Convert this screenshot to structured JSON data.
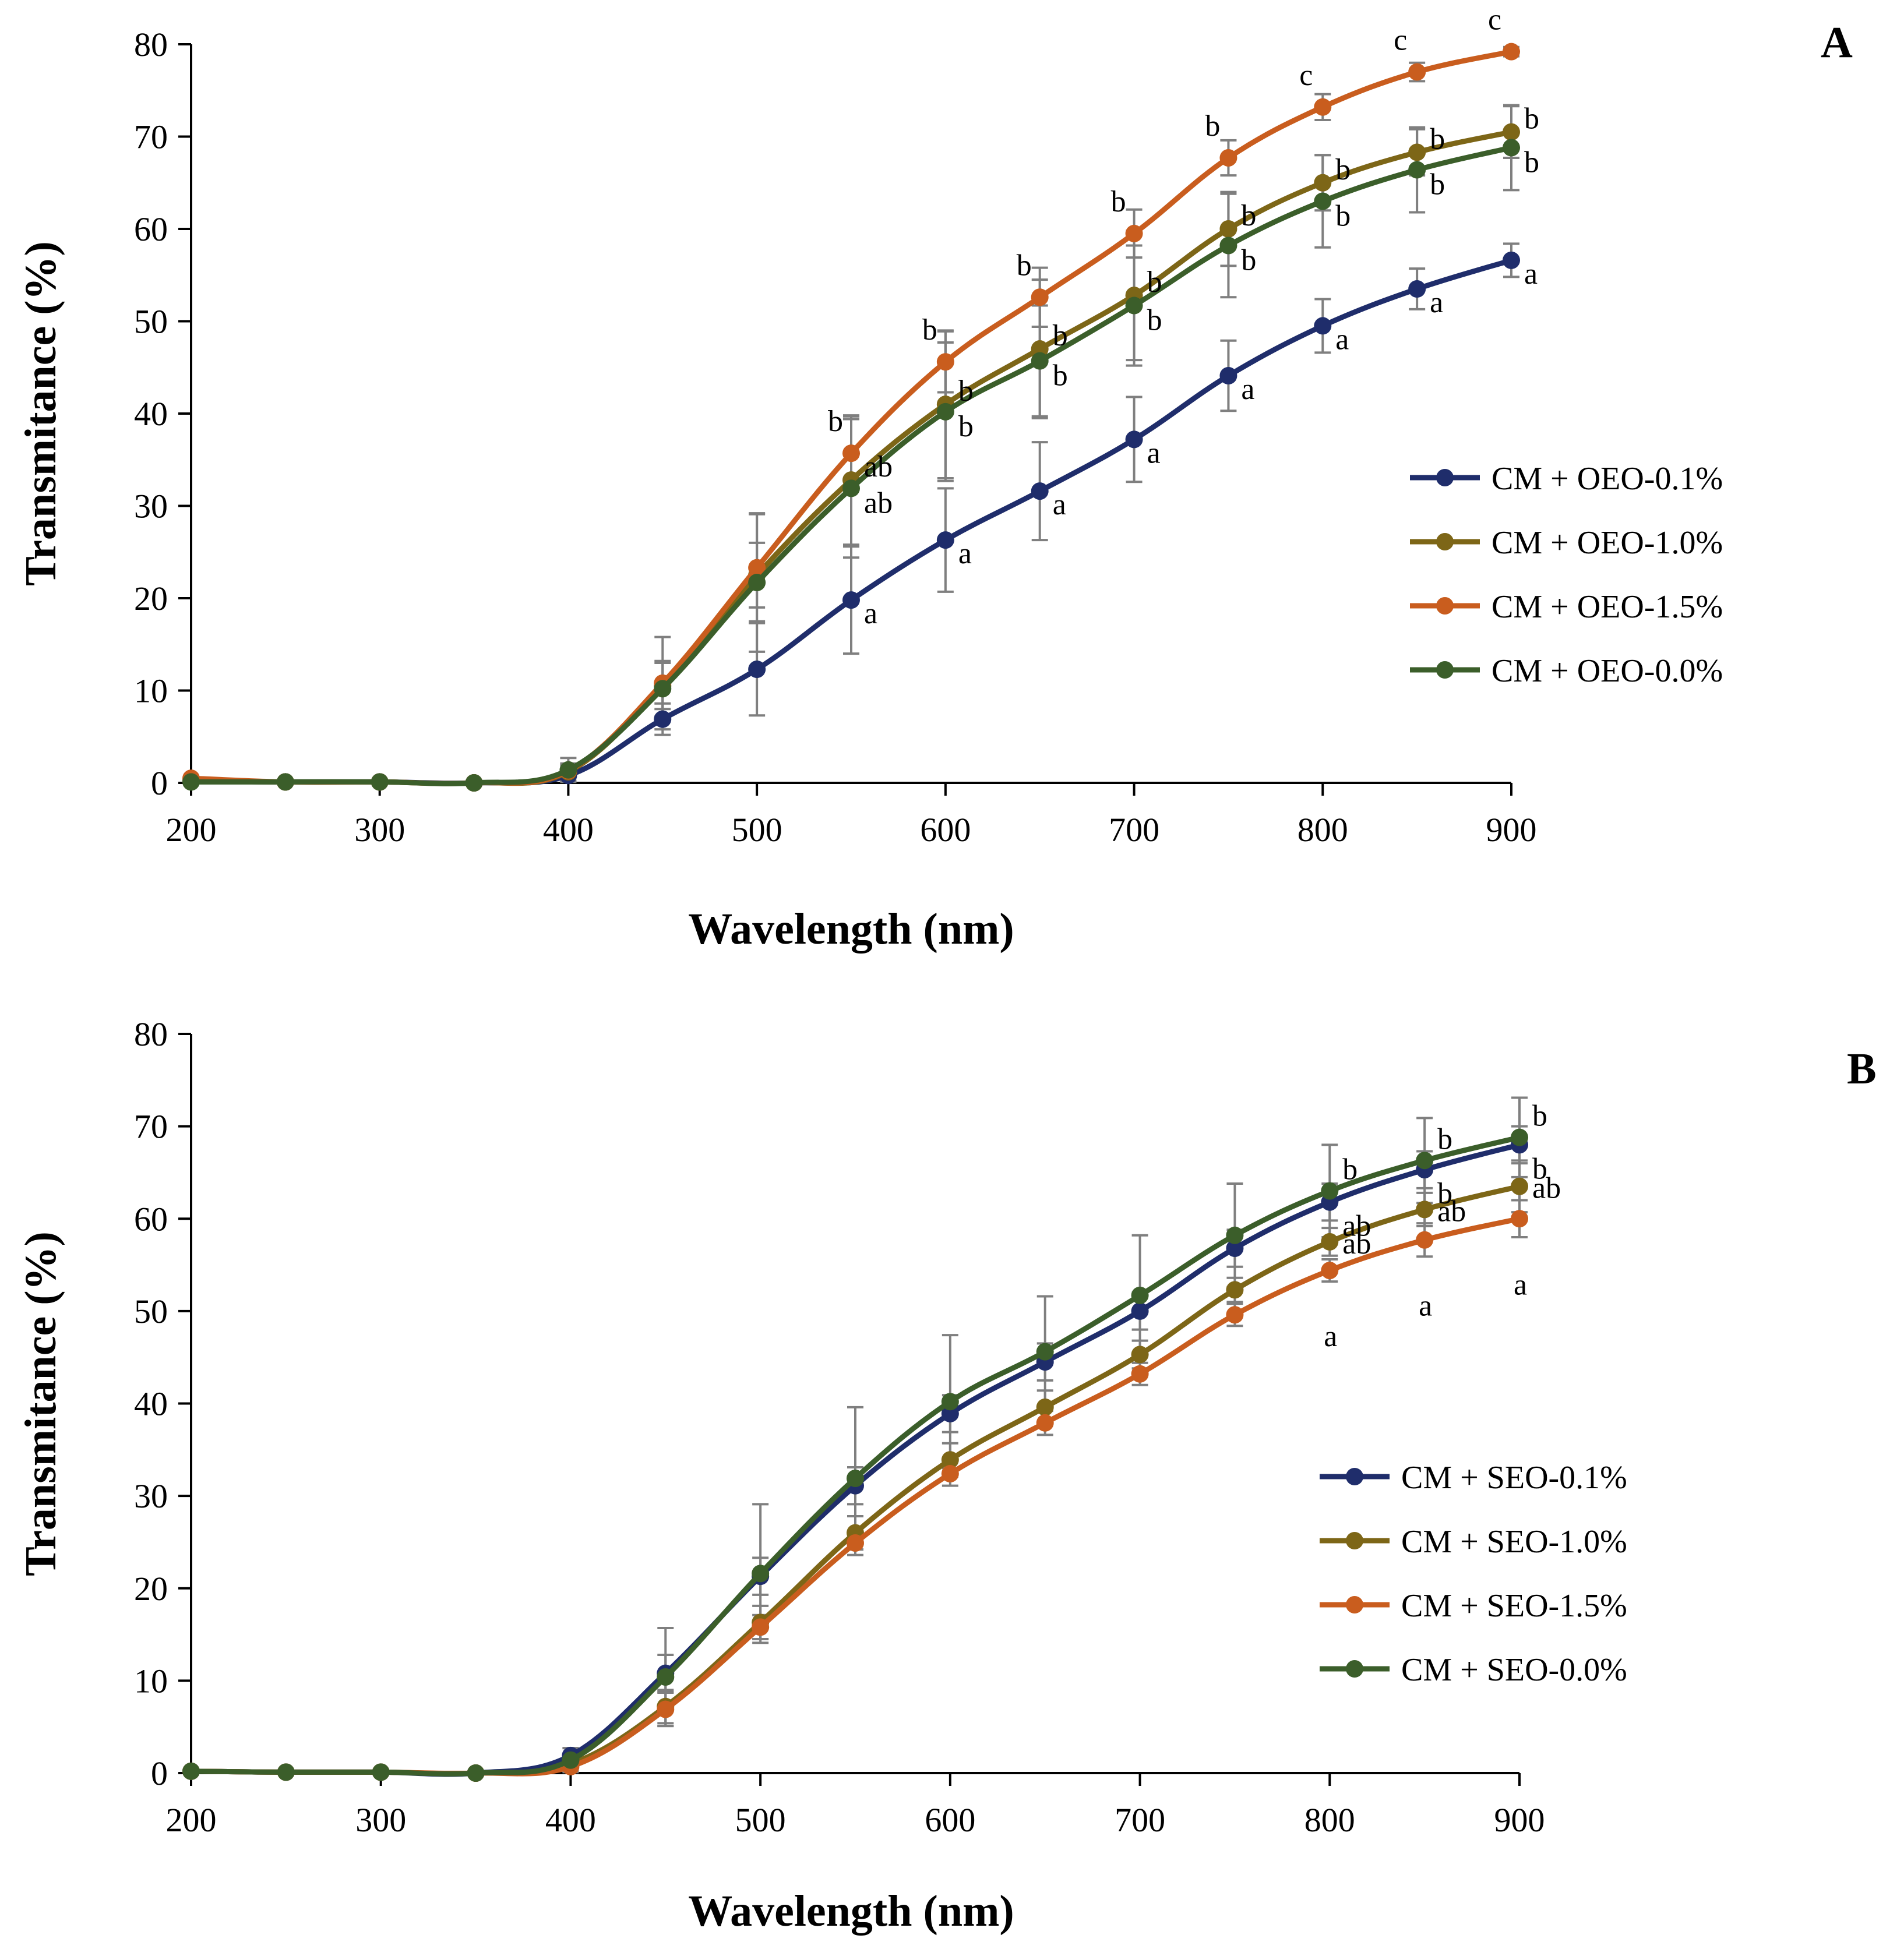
{
  "chart_data": [
    {
      "type": "line",
      "panel_label": "A",
      "xlabel": "Wavelength (nm)",
      "ylabel": "Transmitance (%)",
      "xlim": [
        200,
        900
      ],
      "ylim": [
        0,
        80
      ],
      "x_ticks": [
        200,
        300,
        400,
        500,
        600,
        700,
        800,
        900
      ],
      "y_ticks": [
        0,
        10,
        20,
        30,
        40,
        50,
        60,
        70,
        80
      ],
      "legend_position": "right",
      "x": [
        200,
        250,
        300,
        350,
        400,
        450,
        500,
        550,
        600,
        650,
        700,
        750,
        800,
        850,
        900
      ],
      "series": [
        {
          "name": "CM + OEO-0.1%",
          "color": "#1f2d6b",
          "values": [
            0.2,
            0.1,
            0.1,
            0.0,
            0.8,
            6.9,
            12.3,
            19.8,
            26.3,
            31.6,
            37.2,
            44.1,
            49.5,
            53.5,
            56.6
          ],
          "errors": [
            0.3,
            0.2,
            0.2,
            0.1,
            0.6,
            1.7,
            5.0,
            5.8,
            5.6,
            5.3,
            4.6,
            3.8,
            2.9,
            2.2,
            1.8
          ],
          "sig": [
            null,
            null,
            null,
            null,
            null,
            null,
            null,
            "a",
            "a",
            "a",
            "a",
            "a",
            "a",
            "a",
            "a"
          ]
        },
        {
          "name": "CM + OEO-1.0%",
          "color": "#7d6617",
          "values": [
            0.2,
            0.1,
            0.1,
            0.0,
            1.2,
            10.5,
            22.5,
            32.8,
            41.0,
            47.0,
            52.8,
            60.0,
            65.0,
            68.3,
            70.5
          ],
          "errors": [
            0.3,
            0.2,
            0.2,
            0.1,
            0.7,
            2.5,
            3.5,
            7.0,
            8.0,
            7.5,
            7.0,
            4.0,
            3.0,
            2.5,
            2.8
          ],
          "sig": [
            null,
            null,
            null,
            null,
            null,
            null,
            null,
            "ab",
            "b",
            "b",
            "b",
            "b",
            "b",
            "b",
            "b"
          ]
        },
        {
          "name": "CM + OEO-1.5%",
          "color": "#c95d1e",
          "values": [
            0.5,
            0.1,
            0.1,
            0.0,
            1.3,
            10.8,
            23.3,
            35.7,
            45.6,
            52.6,
            59.5,
            67.7,
            73.2,
            77.0,
            79.2
          ],
          "errors": [
            0.3,
            0.2,
            0.2,
            0.1,
            0.8,
            5.0,
            5.8,
            4.0,
            3.3,
            3.2,
            2.6,
            1.9,
            1.4,
            1.0,
            0.5
          ],
          "sig": [
            null,
            null,
            null,
            null,
            null,
            null,
            null,
            "b",
            "b",
            "b",
            "b",
            "b",
            "c",
            "c",
            "c"
          ]
        },
        {
          "name": "CM + OEO-0.0%",
          "color": "#3b5e2a",
          "values": [
            0.1,
            0.1,
            0.1,
            0.0,
            1.4,
            10.2,
            21.7,
            31.9,
            40.2,
            45.7,
            51.7,
            58.2,
            63.0,
            66.4,
            68.8
          ],
          "errors": [
            0.3,
            0.2,
            0.2,
            0.1,
            1.3,
            3.0,
            7.5,
            7.5,
            7.5,
            6.0,
            6.5,
            5.6,
            5.0,
            4.6,
            4.6
          ],
          "sig": [
            null,
            null,
            null,
            null,
            null,
            null,
            null,
            "ab",
            "b",
            "b",
            "b",
            "b",
            "b",
            "b",
            "b"
          ]
        }
      ]
    },
    {
      "type": "line",
      "panel_label": "B",
      "xlabel": "Wavelength (nm)",
      "ylabel": "Transmitance (%)",
      "xlim": [
        200,
        900
      ],
      "ylim": [
        0,
        80
      ],
      "x_ticks": [
        200,
        300,
        400,
        500,
        600,
        700,
        800,
        900
      ],
      "y_ticks": [
        0,
        10,
        20,
        30,
        40,
        50,
        60,
        70,
        80
      ],
      "legend_position": "right",
      "x": [
        200,
        250,
        300,
        350,
        400,
        450,
        500,
        550,
        600,
        650,
        700,
        750,
        800,
        850,
        900
      ],
      "series": [
        {
          "name": "CM + SEO-0.1%",
          "color": "#1f2d6b",
          "values": [
            0.2,
            0.1,
            0.1,
            0.0,
            1.9,
            10.8,
            21.3,
            31.1,
            38.9,
            44.5,
            50.0,
            56.8,
            61.8,
            65.3,
            68.0
          ],
          "errors": [
            0.3,
            0.2,
            0.2,
            0.1,
            0.8,
            2.0,
            2.0,
            2.0,
            2.0,
            2.0,
            2.0,
            2.0,
            2.0,
            2.0,
            2.0
          ],
          "sig": [
            null,
            null,
            null,
            null,
            null,
            null,
            null,
            null,
            null,
            null,
            null,
            null,
            "ab",
            "b",
            "b"
          ]
        },
        {
          "name": "CM + SEO-1.0%",
          "color": "#7d6617",
          "values": [
            0.2,
            0.1,
            0.1,
            0.0,
            1.0,
            7.2,
            16.3,
            26.0,
            33.9,
            39.6,
            45.3,
            52.3,
            57.5,
            61.0,
            63.5
          ],
          "errors": [
            0.3,
            0.2,
            0.2,
            0.1,
            0.6,
            1.8,
            1.8,
            1.8,
            1.8,
            1.8,
            1.5,
            1.3,
            1.5,
            1.8,
            2.8
          ],
          "sig": [
            null,
            null,
            null,
            null,
            null,
            null,
            null,
            null,
            null,
            null,
            null,
            null,
            "ab",
            "ab",
            "ab"
          ]
        },
        {
          "name": "CM + SEO-1.5%",
          "color": "#c95d1e",
          "values": [
            0.2,
            0.1,
            0.1,
            0.0,
            0.7,
            6.9,
            15.8,
            24.9,
            32.4,
            37.9,
            43.2,
            49.6,
            54.4,
            57.7,
            60.0
          ],
          "errors": [
            0.3,
            0.2,
            0.2,
            0.1,
            0.5,
            1.8,
            1.3,
            1.3,
            1.3,
            1.3,
            1.2,
            1.2,
            1.2,
            1.8,
            2.0
          ],
          "sig": [
            null,
            null,
            null,
            null,
            null,
            null,
            null,
            null,
            null,
            null,
            null,
            null,
            "a",
            "a",
            "a"
          ]
        },
        {
          "name": "CM + SEO-0.0%",
          "color": "#3b5e2a",
          "values": [
            0.2,
            0.1,
            0.1,
            0.0,
            1.4,
            10.4,
            21.6,
            31.9,
            40.2,
            45.6,
            51.7,
            58.2,
            63.0,
            66.3,
            68.8
          ],
          "errors": [
            0.3,
            0.2,
            0.2,
            0.1,
            1.3,
            5.3,
            7.5,
            7.7,
            7.2,
            6.0,
            6.5,
            5.6,
            5.0,
            4.6,
            4.3
          ],
          "sig": [
            null,
            null,
            null,
            null,
            null,
            null,
            null,
            null,
            null,
            null,
            null,
            null,
            "b",
            "b",
            "b"
          ]
        }
      ]
    }
  ]
}
